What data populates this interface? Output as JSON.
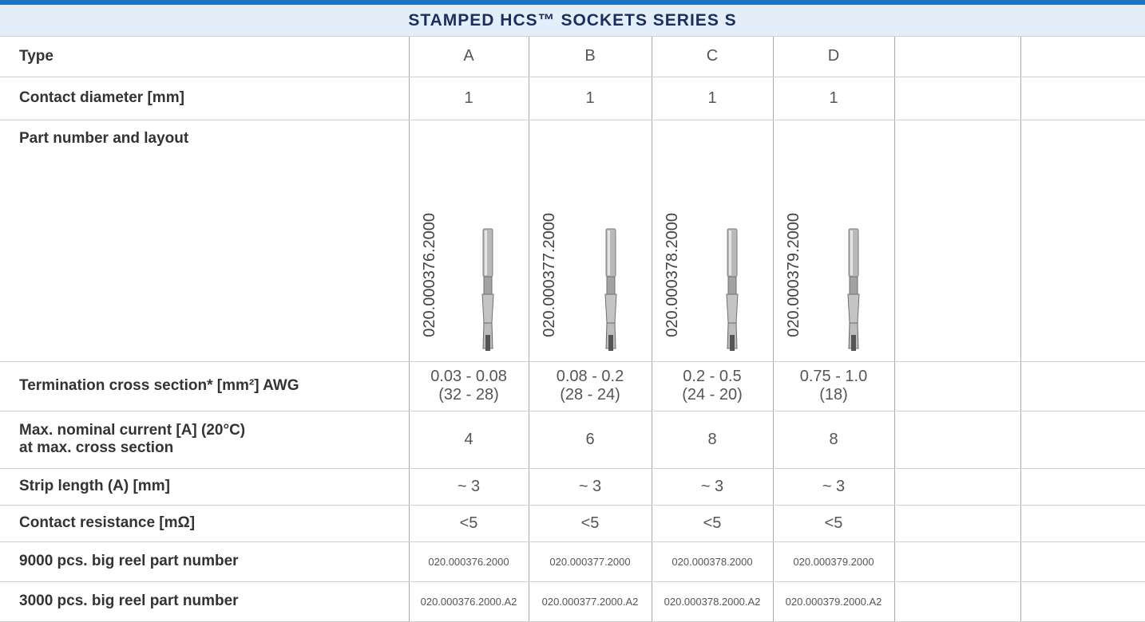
{
  "header": {
    "title": "STAMPED HCS™ SOCKETS SERIES S"
  },
  "table": {
    "rows": [
      {
        "label": "Type",
        "cells": [
          "A",
          "B",
          "C",
          "D"
        ]
      },
      {
        "label": "Contact diameter [mm]",
        "cells": [
          "1",
          "1",
          "1",
          "1"
        ]
      },
      {
        "label": "Part number and layout",
        "cells": [
          "020.000376.2000",
          "020.000377.2000",
          "020.000378.2000",
          "020.000379.2000"
        ]
      },
      {
        "label": "Termination cross section* [mm²] AWG",
        "cells": [
          [
            "0.03 - 0.08",
            "(32 - 28)"
          ],
          [
            "0.08 - 0.2",
            "(28 - 24)"
          ],
          [
            "0.2 - 0.5",
            "(24 - 20)"
          ],
          [
            "0.75 - 1.0",
            "(18)"
          ]
        ]
      },
      {
        "label": [
          "Max. nominal current [A] (20°C)",
          "at max. cross section"
        ],
        "cells": [
          "4",
          "6",
          "8",
          "8"
        ]
      },
      {
        "label": "Strip length (A) [mm]",
        "cells": [
          "~ 3",
          "~ 3",
          "~ 3",
          "~ 3"
        ]
      },
      {
        "label": "Contact resistance [mΩ]",
        "cells": [
          "<5",
          "<5",
          "<5",
          "<5"
        ]
      },
      {
        "label": "9000 pcs. big reel part number",
        "cells": [
          "020.000376.2000",
          "020.000377.2000",
          "020.000378.2000",
          "020.000379.2000"
        ]
      },
      {
        "label": "3000 pcs. big reel part number",
        "cells": [
          "020.000376.2000.A2",
          "020.000377.2000.A2",
          "020.000378.2000.A2",
          "020.000379.2000.A2"
        ]
      }
    ]
  }
}
